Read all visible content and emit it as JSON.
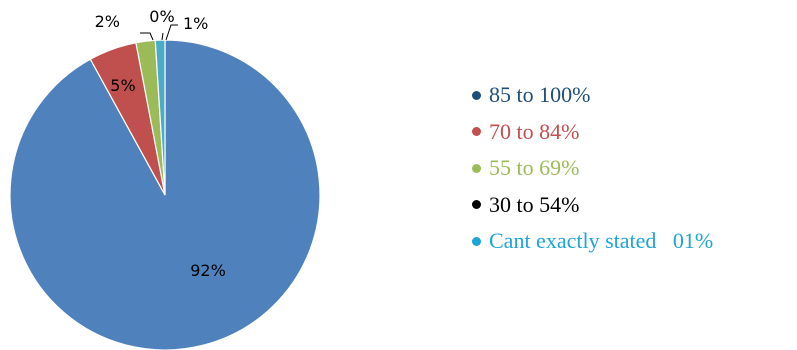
{
  "chart_data": {
    "type": "pie",
    "slices": [
      {
        "label": "92%",
        "value": 92,
        "color": "#4F81BD",
        "legend": "85 to 100%",
        "legend_color": "#1F4E79"
      },
      {
        "label": "5%",
        "value": 5,
        "color": "#C0504D",
        "legend": "70 to 84%",
        "legend_color": "#C0504D"
      },
      {
        "label": "2%",
        "value": 2,
        "color": "#9BBB59",
        "legend": "55 to 69%",
        "legend_color": "#9BBB59"
      },
      {
        "label": "0%",
        "value": 0,
        "color": "#000000",
        "legend": "30 to 54%",
        "legend_color": "#000000"
      },
      {
        "label": "1%",
        "value": 1,
        "color": "#4BACC6",
        "legend": "Cant exactly stated   01%",
        "legend_color": "#1FA4D8"
      }
    ],
    "legend_position": "right"
  }
}
